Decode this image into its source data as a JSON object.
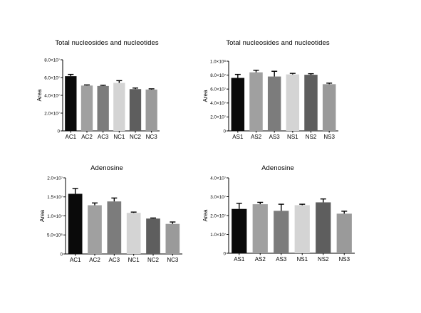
{
  "chart_data": [
    {
      "type": "bar",
      "title": "Total nucleosides and nucleotides",
      "ylabel": "Area",
      "xlabel": "",
      "ylim": [
        0,
        80000000
      ],
      "yticks": [
        0,
        20000000,
        40000000,
        60000000,
        80000000
      ],
      "ytick_labels": [
        "0",
        "2.0×10⁷",
        "4.0×10⁷",
        "6.0×10⁷",
        "8.0×10⁷"
      ],
      "categories": [
        "AC1",
        "AC2",
        "AC3",
        "NC1",
        "NC2",
        "NC3"
      ],
      "values": [
        61500000,
        51000000,
        50500000,
        54000000,
        47000000,
        46500000
      ],
      "errors": [
        2000000,
        700000,
        800000,
        2500000,
        1200000,
        800000
      ],
      "colors": [
        "#0a0a0a",
        "#a0a0a0",
        "#7c7c7c",
        "#d4d4d4",
        "#5e5e5e",
        "#9a9a9a"
      ]
    },
    {
      "type": "bar",
      "title": "Total nucleosides and nucleotides",
      "ylabel": "Area",
      "xlabel": "",
      "ylim": [
        0,
        100000000
      ],
      "yticks": [
        0,
        20000000,
        40000000,
        60000000,
        80000000,
        100000000
      ],
      "ytick_labels": [
        "0",
        "2.0×10⁷",
        "4.0×10⁷",
        "6.0×10⁷",
        "8.0×10⁷",
        "1.0×10⁸"
      ],
      "categories": [
        "AS1",
        "AS2",
        "AS3",
        "NS1",
        "NS2",
        "NS3"
      ],
      "values": [
        76000000,
        84000000,
        78000000,
        81000000,
        80500000,
        67000000
      ],
      "errors": [
        5000000,
        3000000,
        7500000,
        1500000,
        1500000,
        1500000
      ],
      "colors": [
        "#0a0a0a",
        "#a0a0a0",
        "#7c7c7c",
        "#d4d4d4",
        "#5e5e5e",
        "#9a9a9a"
      ]
    },
    {
      "type": "bar",
      "title": "Adenosine",
      "ylabel": "Area",
      "xlabel": "",
      "ylim": [
        0,
        20000000
      ],
      "yticks": [
        0,
        5000000,
        10000000,
        15000000,
        20000000
      ],
      "ytick_labels": [
        "0",
        "5.0×10⁶",
        "1.0×10⁷",
        "1.5×10⁷",
        "2.0×10⁷"
      ],
      "categories": [
        "AC1",
        "AC2",
        "AC3",
        "NC1",
        "NC2",
        "NC3"
      ],
      "values": [
        15800000,
        12800000,
        13800000,
        10800000,
        9300000,
        7900000
      ],
      "errors": [
        1400000,
        600000,
        900000,
        200000,
        150000,
        500000
      ],
      "colors": [
        "#0a0a0a",
        "#a0a0a0",
        "#7c7c7c",
        "#d4d4d4",
        "#5e5e5e",
        "#9a9a9a"
      ]
    },
    {
      "type": "bar",
      "title": "Adenosine",
      "ylabel": "Area",
      "xlabel": "",
      "ylim": [
        0,
        40000000
      ],
      "yticks": [
        0,
        10000000,
        20000000,
        30000000,
        40000000
      ],
      "ytick_labels": [
        "0",
        "1.0×10⁷",
        "2.0×10⁷",
        "3.0×10⁷",
        "4.0×10⁷"
      ],
      "categories": [
        "AS1",
        "AS2",
        "AS3",
        "NS1",
        "NS2",
        "NS3"
      ],
      "values": [
        23500000,
        26000000,
        22500000,
        25500000,
        27000000,
        21000000
      ],
      "errors": [
        3000000,
        1000000,
        3500000,
        500000,
        1800000,
        1300000
      ],
      "colors": [
        "#0a0a0a",
        "#a0a0a0",
        "#7c7c7c",
        "#d4d4d4",
        "#5e5e5e",
        "#9a9a9a"
      ]
    }
  ]
}
